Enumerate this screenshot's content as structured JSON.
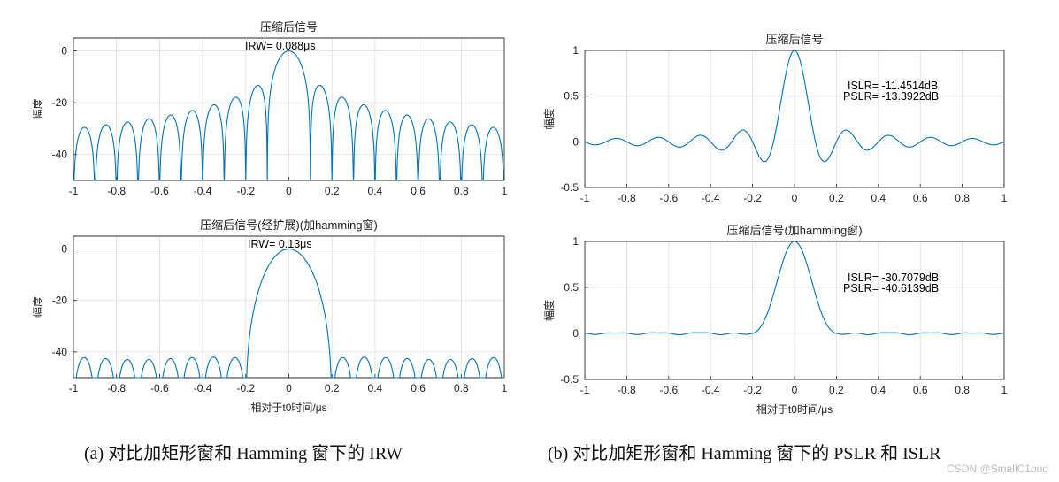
{
  "captions": {
    "left": "(a) 对比加矩形窗和 Hamming 窗下的 IRW",
    "right": "(b) 对比加矩形窗和 Hamming 窗下的 PSLR 和 ISLR"
  },
  "watermark": "CSDN @SmallC1oud",
  "colors": {
    "line": "#0072BD",
    "grid": "#dddddd",
    "axis": "#222222"
  },
  "chart_data": [
    {
      "id": "a1",
      "type": "line",
      "title": "压缩后信号",
      "annotations": [
        "IRW= 0.088μs"
      ],
      "ylabel": "幅度",
      "xlabel": "",
      "xlim": [
        -1,
        1
      ],
      "ylim": [
        -50,
        5
      ],
      "xticks": [
        "-1",
        "-0.8",
        "-0.6",
        "-0.4",
        "-0.2",
        "0",
        "0.2",
        "0.4",
        "0.6",
        "0.8",
        "1"
      ],
      "yticks": [
        "0",
        "-20",
        "-40"
      ],
      "grid": true,
      "series": [
        {
          "kind": "rect_db",
          "mainlobe_null": 0.1,
          "sidelobe_spacing": 0.1,
          "floor": -50
        }
      ]
    },
    {
      "id": "a2",
      "type": "line",
      "title": "压缩后信号(经扩展)(加hamming窗)",
      "annotations": [
        "IRW= 0.13μs"
      ],
      "ylabel": "幅度",
      "xlabel": "相对于t0时间/μs",
      "xlim": [
        -1,
        1
      ],
      "ylim": [
        -50,
        5
      ],
      "xticks": [
        "-1",
        "-0.8",
        "-0.6",
        "-0.4",
        "-0.2",
        "0",
        "0.2",
        "0.4",
        "0.6",
        "0.8",
        "1"
      ],
      "yticks": [
        "0",
        "-20",
        "-40"
      ],
      "grid": true,
      "series": [
        {
          "kind": "hamming_db",
          "mainlobe_null": 0.2,
          "sidelobe_spacing": 0.1,
          "floor": -50
        }
      ]
    },
    {
      "id": "b1",
      "type": "line",
      "title": "压缩后信号",
      "annotations": [
        "ISLR= -11.4514dB",
        "PSLR= -13.3922dB"
      ],
      "ylabel": "幅度",
      "xlabel": "",
      "xlim": [
        -1,
        1
      ],
      "ylim": [
        -0.5,
        1
      ],
      "xticks": [
        "-1",
        "-0.8",
        "-0.6",
        "-0.4",
        "-0.2",
        "0",
        "0.2",
        "0.4",
        "0.6",
        "0.8",
        "1"
      ],
      "yticks": [
        "1",
        "0.5",
        "0",
        "-0.5"
      ],
      "grid": true,
      "series": [
        {
          "kind": "sinc",
          "mainlobe_null": 0.1,
          "first_sidelobe": -0.21
        }
      ]
    },
    {
      "id": "b2",
      "type": "line",
      "title": "压缩后信号(加hamming窗)",
      "annotations": [
        "ISLR= -30.7079dB",
        "PSLR= -40.6139dB"
      ],
      "ylabel": "幅度",
      "xlabel": "相对于t0时间/μs",
      "xlim": [
        -1,
        1
      ],
      "ylim": [
        -0.5,
        1
      ],
      "xticks": [
        "-1",
        "-0.8",
        "-0.6",
        "-0.4",
        "-0.2",
        "0",
        "0.2",
        "0.4",
        "0.6",
        "0.8",
        "1"
      ],
      "yticks": [
        "1",
        "0.5",
        "0",
        "-0.5"
      ],
      "grid": true,
      "series": [
        {
          "kind": "hamming_lin",
          "mainlobe_null": 0.2,
          "sidelobe_level": 0.01
        }
      ]
    }
  ]
}
